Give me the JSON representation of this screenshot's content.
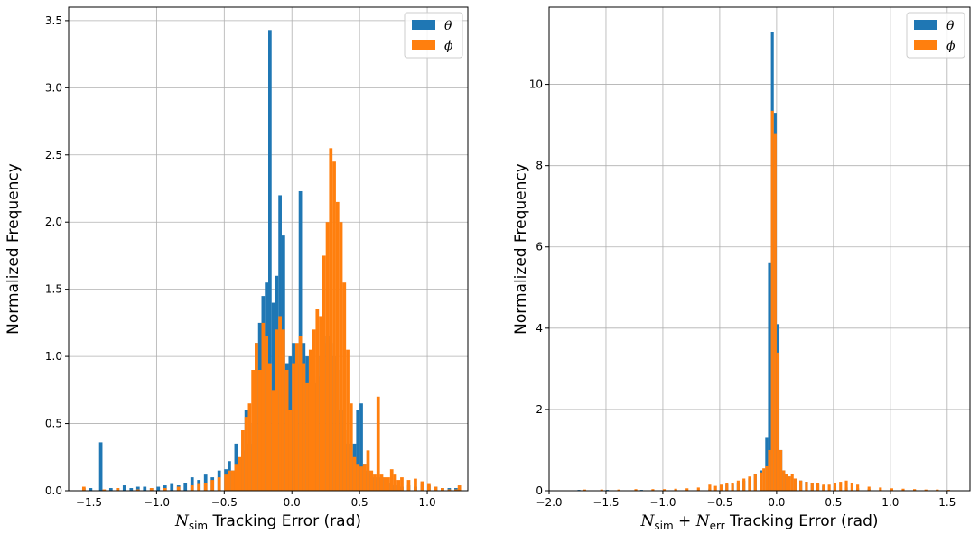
{
  "colors": {
    "theta": "#1f77b4",
    "phi": "#ff7f0e"
  },
  "chart_data": [
    {
      "type": "bar",
      "xlabel_main": "N",
      "xlabel_sub": "sim",
      "xlabel_rest": " Tracking Error (rad)",
      "ylabel": "Normalized Frequency",
      "xlim": [
        -1.65,
        1.3
      ],
      "ylim": [
        0,
        3.6
      ],
      "xticks": [
        -1.5,
        -1.0,
        -0.5,
        0.0,
        0.5,
        1.0
      ],
      "xtick_labels": [
        "−1.5",
        "−1.0",
        "−0.5",
        "0.0",
        "0.5",
        "1.0"
      ],
      "yticks": [
        0,
        0.5,
        1.0,
        1.5,
        2.0,
        2.5,
        3.0,
        3.5
      ],
      "ytick_labels": [
        "0.0",
        "0.5",
        "1.0",
        "1.5",
        "2.0",
        "2.5",
        "3.0",
        "3.5"
      ],
      "grid": true,
      "legend": {
        "location": "top-right",
        "entries": [
          "θ",
          "ϕ"
        ]
      },
      "bin_width": 0.025,
      "series": [
        {
          "name": "θ",
          "bins": [
            [
              -1.55,
              0.02
            ],
            [
              -1.5,
              0.02
            ],
            [
              -1.425,
              0.36
            ],
            [
              -1.35,
              0.02
            ],
            [
              -1.3,
              0.02
            ],
            [
              -1.25,
              0.04
            ],
            [
              -1.2,
              0.02
            ],
            [
              -1.15,
              0.03
            ],
            [
              -1.1,
              0.03
            ],
            [
              -1.05,
              0.02
            ],
            [
              -1.0,
              0.03
            ],
            [
              -0.95,
              0.04
            ],
            [
              -0.9,
              0.05
            ],
            [
              -0.85,
              0.04
            ],
            [
              -0.8,
              0.06
            ],
            [
              -0.75,
              0.1
            ],
            [
              -0.7,
              0.08
            ],
            [
              -0.65,
              0.12
            ],
            [
              -0.6,
              0.1
            ],
            [
              -0.55,
              0.15
            ],
            [
              -0.5,
              0.16
            ],
            [
              -0.475,
              0.22
            ],
            [
              -0.45,
              0.15
            ],
            [
              -0.425,
              0.35
            ],
            [
              -0.4,
              0.2
            ],
            [
              -0.375,
              0.3
            ],
            [
              -0.35,
              0.6
            ],
            [
              -0.325,
              0.35
            ],
            [
              -0.3,
              0.5
            ],
            [
              -0.275,
              1.1
            ],
            [
              -0.25,
              1.25
            ],
            [
              -0.225,
              1.45
            ],
            [
              -0.2,
              1.55
            ],
            [
              -0.175,
              3.43
            ],
            [
              -0.15,
              1.4
            ],
            [
              -0.125,
              1.6
            ],
            [
              -0.1,
              2.2
            ],
            [
              -0.075,
              1.9
            ],
            [
              -0.05,
              0.95
            ],
            [
              -0.025,
              1.0
            ],
            [
              0.0,
              1.1
            ],
            [
              0.025,
              0.95
            ],
            [
              0.05,
              2.23
            ],
            [
              0.075,
              1.1
            ],
            [
              0.1,
              1.0
            ],
            [
              0.125,
              0.9
            ],
            [
              0.15,
              0.8
            ],
            [
              0.175,
              0.85
            ],
            [
              0.2,
              1.0
            ],
            [
              0.225,
              1.1
            ],
            [
              0.25,
              1.15
            ],
            [
              0.275,
              1.1
            ],
            [
              0.3,
              1.0
            ],
            [
              0.325,
              0.9
            ],
            [
              0.35,
              0.6
            ],
            [
              0.375,
              0.45
            ],
            [
              0.4,
              0.35
            ],
            [
              0.425,
              0.3
            ],
            [
              0.45,
              0.35
            ],
            [
              0.475,
              0.6
            ],
            [
              0.5,
              0.65
            ],
            [
              0.525,
              0.2
            ],
            [
              0.55,
              0.15
            ],
            [
              0.575,
              0.12
            ],
            [
              0.6,
              0.1
            ],
            [
              0.625,
              0.08
            ],
            [
              0.65,
              0.1
            ],
            [
              0.7,
              0.06
            ],
            [
              0.75,
              0.04
            ],
            [
              0.8,
              0.03
            ],
            [
              0.85,
              0.04
            ],
            [
              0.9,
              0.03
            ],
            [
              0.95,
              0.05
            ],
            [
              1.0,
              0.04
            ],
            [
              1.05,
              0.03
            ],
            [
              1.1,
              0.02
            ],
            [
              1.15,
              0.02
            ],
            [
              1.2,
              0.02
            ]
          ]
        },
        {
          "name": "ϕ",
          "bins": [
            [
              -1.55,
              0.03
            ],
            [
              -1.4,
              0.01
            ],
            [
              -1.3,
              0.02
            ],
            [
              -1.15,
              0.01
            ],
            [
              -1.05,
              0.02
            ],
            [
              -0.95,
              0.02
            ],
            [
              -0.85,
              0.03
            ],
            [
              -0.75,
              0.04
            ],
            [
              -0.7,
              0.05
            ],
            [
              -0.65,
              0.06
            ],
            [
              -0.6,
              0.08
            ],
            [
              -0.55,
              0.1
            ],
            [
              -0.5,
              0.12
            ],
            [
              -0.475,
              0.15
            ],
            [
              -0.45,
              0.15
            ],
            [
              -0.425,
              0.2
            ],
            [
              -0.4,
              0.25
            ],
            [
              -0.375,
              0.45
            ],
            [
              -0.35,
              0.55
            ],
            [
              -0.325,
              0.65
            ],
            [
              -0.3,
              0.9
            ],
            [
              -0.275,
              1.1
            ],
            [
              -0.25,
              0.9
            ],
            [
              -0.225,
              1.25
            ],
            [
              -0.2,
              1.15
            ],
            [
              -0.175,
              0.95
            ],
            [
              -0.15,
              0.75
            ],
            [
              -0.125,
              1.2
            ],
            [
              -0.1,
              1.3
            ],
            [
              -0.075,
              1.2
            ],
            [
              -0.05,
              0.9
            ],
            [
              -0.025,
              0.6
            ],
            [
              0.0,
              0.95
            ],
            [
              0.025,
              1.1
            ],
            [
              0.05,
              1.15
            ],
            [
              0.075,
              0.95
            ],
            [
              0.1,
              0.8
            ],
            [
              0.125,
              1.05
            ],
            [
              0.15,
              1.2
            ],
            [
              0.175,
              1.35
            ],
            [
              0.2,
              1.3
            ],
            [
              0.225,
              1.75
            ],
            [
              0.25,
              2.0
            ],
            [
              0.275,
              2.55
            ],
            [
              0.3,
              2.45
            ],
            [
              0.325,
              2.15
            ],
            [
              0.35,
              2.0
            ],
            [
              0.375,
              1.55
            ],
            [
              0.4,
              1.05
            ],
            [
              0.425,
              0.65
            ],
            [
              0.45,
              0.25
            ],
            [
              0.475,
              0.2
            ],
            [
              0.5,
              0.18
            ],
            [
              0.525,
              0.2
            ],
            [
              0.55,
              0.3
            ],
            [
              0.575,
              0.15
            ],
            [
              0.6,
              0.12
            ],
            [
              0.625,
              0.7
            ],
            [
              0.65,
              0.12
            ],
            [
              0.675,
              0.1
            ],
            [
              0.7,
              0.1
            ],
            [
              0.725,
              0.16
            ],
            [
              0.75,
              0.12
            ],
            [
              0.775,
              0.08
            ],
            [
              0.8,
              0.1
            ],
            [
              0.85,
              0.08
            ],
            [
              0.9,
              0.09
            ],
            [
              0.95,
              0.07
            ],
            [
              1.0,
              0.05
            ],
            [
              1.05,
              0.03
            ],
            [
              1.1,
              0.02
            ],
            [
              1.15,
              0.01
            ],
            [
              1.2,
              0.01
            ],
            [
              1.225,
              0.04
            ]
          ]
        }
      ]
    },
    {
      "type": "bar",
      "xlabel_main": "N",
      "xlabel_sub": "sim",
      "xlabel_plus": " + ",
      "xlabel_main2": "N",
      "xlabel_sub2": "err",
      "xlabel_rest": " Tracking Error (rad)",
      "ylabel": "Normalized Frequency",
      "xlim": [
        -2.0,
        1.7
      ],
      "ylim": [
        0,
        11.9
      ],
      "xticks": [
        -2.0,
        -1.5,
        -1.0,
        -0.5,
        0.0,
        0.5,
        1.0,
        1.5
      ],
      "xtick_labels": [
        "−2.0",
        "−1.5",
        "−1.0",
        "−0.5",
        "0.0",
        "0.5",
        "1.0",
        "1.5"
      ],
      "yticks": [
        0,
        2,
        4,
        6,
        8,
        10
      ],
      "ytick_labels": [
        "0",
        "2",
        "4",
        "6",
        "8",
        "10"
      ],
      "grid": true,
      "legend": {
        "location": "top-right",
        "entries": [
          "θ",
          "ϕ"
        ]
      },
      "bin_width": 0.025,
      "series": [
        {
          "name": "θ",
          "bins": [
            [
              -1.75,
              0.02
            ],
            [
              -1.5,
              0.02
            ],
            [
              -1.2,
              0.02
            ],
            [
              -0.9,
              0.03
            ],
            [
              -0.6,
              0.05
            ],
            [
              -0.5,
              0.1
            ],
            [
              -0.45,
              0.15
            ],
            [
              -0.4,
              0.15
            ],
            [
              -0.35,
              0.2
            ],
            [
              -0.3,
              0.25
            ],
            [
              -0.25,
              0.3
            ],
            [
              -0.2,
              0.4
            ],
            [
              -0.15,
              0.5
            ],
            [
              -0.1,
              1.3
            ],
            [
              -0.075,
              5.6
            ],
            [
              -0.05,
              11.3
            ],
            [
              -0.025,
              9.3
            ],
            [
              0.0,
              4.1
            ],
            [
              0.025,
              1.0
            ],
            [
              0.05,
              0.5
            ],
            [
              0.075,
              0.4
            ],
            [
              0.1,
              0.35
            ],
            [
              0.15,
              0.3
            ],
            [
              0.2,
              0.25
            ],
            [
              0.25,
              0.22
            ],
            [
              0.3,
              0.18
            ],
            [
              0.35,
              0.15
            ],
            [
              0.4,
              0.12
            ],
            [
              0.5,
              0.1
            ],
            [
              0.6,
              0.08
            ],
            [
              0.7,
              0.06
            ],
            [
              0.8,
              0.05
            ],
            [
              1.0,
              0.04
            ],
            [
              1.2,
              0.03
            ],
            [
              1.4,
              0.02
            ],
            [
              1.55,
              0.01
            ]
          ]
        },
        {
          "name": "ϕ",
          "bins": [
            [
              -1.85,
              0.01
            ],
            [
              -1.7,
              0.03
            ],
            [
              -1.55,
              0.03
            ],
            [
              -1.4,
              0.03
            ],
            [
              -1.25,
              0.04
            ],
            [
              -1.1,
              0.04
            ],
            [
              -1.0,
              0.04
            ],
            [
              -0.9,
              0.05
            ],
            [
              -0.8,
              0.06
            ],
            [
              -0.7,
              0.08
            ],
            [
              -0.6,
              0.15
            ],
            [
              -0.55,
              0.12
            ],
            [
              -0.5,
              0.15
            ],
            [
              -0.45,
              0.18
            ],
            [
              -0.4,
              0.2
            ],
            [
              -0.35,
              0.25
            ],
            [
              -0.3,
              0.3
            ],
            [
              -0.25,
              0.35
            ],
            [
              -0.2,
              0.4
            ],
            [
              -0.15,
              0.45
            ],
            [
              -0.125,
              0.55
            ],
            [
              -0.1,
              0.6
            ],
            [
              -0.075,
              1.0
            ],
            [
              -0.05,
              9.35
            ],
            [
              -0.025,
              8.8
            ],
            [
              0.0,
              3.4
            ],
            [
              0.025,
              1.0
            ],
            [
              0.05,
              0.5
            ],
            [
              0.075,
              0.4
            ],
            [
              0.1,
              0.35
            ],
            [
              0.125,
              0.4
            ],
            [
              0.15,
              0.3
            ],
            [
              0.2,
              0.25
            ],
            [
              0.25,
              0.22
            ],
            [
              0.3,
              0.2
            ],
            [
              0.35,
              0.18
            ],
            [
              0.4,
              0.15
            ],
            [
              0.45,
              0.15
            ],
            [
              0.5,
              0.2
            ],
            [
              0.55,
              0.22
            ],
            [
              0.6,
              0.25
            ],
            [
              0.65,
              0.2
            ],
            [
              0.7,
              0.15
            ],
            [
              0.8,
              0.1
            ],
            [
              0.9,
              0.08
            ],
            [
              1.0,
              0.06
            ],
            [
              1.1,
              0.05
            ],
            [
              1.2,
              0.04
            ],
            [
              1.3,
              0.03
            ],
            [
              1.4,
              0.03
            ],
            [
              1.5,
              0.02
            ],
            [
              1.6,
              0.01
            ]
          ]
        }
      ]
    }
  ]
}
